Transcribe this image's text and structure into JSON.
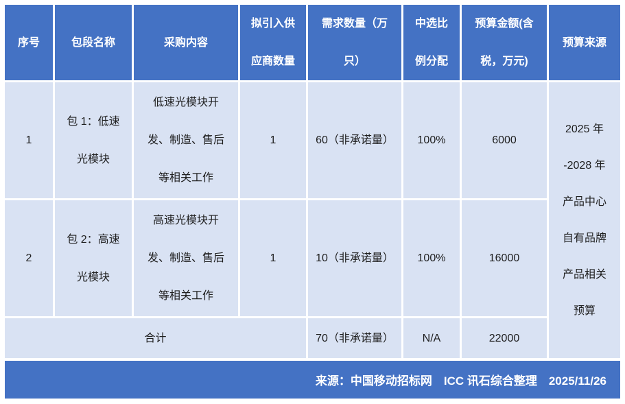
{
  "colors": {
    "header_bg": "#4472C4",
    "body_bg": "#D9E2F3",
    "gridline": "#FFFFFF",
    "header_text": "#FFFFFF",
    "body_text": "#1F1F1F",
    "footer_bg": "#4472C4",
    "footer_text": "#FFFFFF"
  },
  "table": {
    "headers": {
      "serial": "序号",
      "package_name": "包段名称",
      "procurement_content": "采购内容",
      "supplier_count": "拟引入供\n应商数量",
      "demand_quantity": "需求数量（万\n只）",
      "selection_ratio": "中选比\n例分配",
      "budget_amount": "预算金额(含\n税，万元)",
      "budget_source": "预算来源"
    },
    "rows": [
      {
        "serial": "1",
        "package_name": "包 1：低速\n光模块",
        "procurement_content": "低速光模块开\n发、制造、售后\n等相关工作",
        "supplier_count": "1",
        "demand_quantity": "60（非承诺量）",
        "selection_ratio": "100%",
        "budget_amount": "6000"
      },
      {
        "serial": "2",
        "package_name": "包 2：高速\n光模块",
        "procurement_content": "高速光模块开\n发、制造、售后\n等相关工作",
        "supplier_count": "1",
        "demand_quantity": "10（非承诺量）",
        "selection_ratio": "100%",
        "budget_amount": "16000"
      }
    ],
    "total_row": {
      "label": "合计",
      "demand_quantity": "70（非承诺量）",
      "selection_ratio": "N/A",
      "budget_amount": "22000"
    },
    "budget_source": "2025 年\n-2028 年\n产品中心\n自有品牌\n产品相关\n预算"
  },
  "footer": {
    "text": "来源：中国移动招标网　ICC 讯石综合整理　2025/11/26"
  }
}
